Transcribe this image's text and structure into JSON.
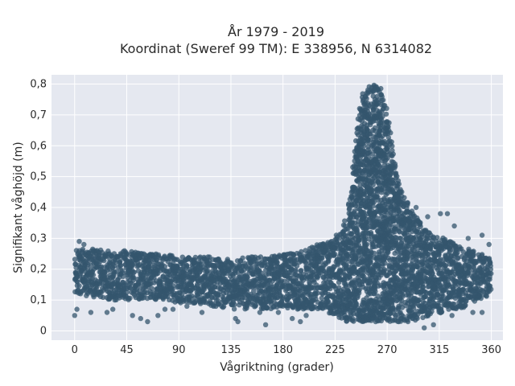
{
  "chart_data": {
    "type": "scatter",
    "title_line1": "År 1979 - 2019",
    "title_line2": "Koordinat (Sweref 99 TM): E 338956, N 6314082",
    "xlabel": "Vågriktning (grader)",
    "ylabel": "Signifikant våghöjd (m)",
    "xlim": [
      -20,
      370
    ],
    "ylim": [
      -0.03,
      0.83
    ],
    "x_ticks": [
      0,
      45,
      90,
      135,
      180,
      225,
      270,
      315,
      360
    ],
    "x_tick_labels": [
      "0",
      "45",
      "90",
      "135",
      "180",
      "225",
      "270",
      "315",
      "360"
    ],
    "y_ticks": [
      0,
      0.1,
      0.2,
      0.3,
      0.4,
      0.5,
      0.6,
      0.7,
      0.8
    ],
    "y_tick_labels": [
      "0",
      "0,1",
      "0,2",
      "0,3",
      "0,4",
      "0,5",
      "0,6",
      "0,7",
      "0,8"
    ],
    "grid": true,
    "marker_color": "#34566d",
    "background_color": "#e5e8f0",
    "density_envelope": {
      "x": [
        0,
        15,
        30,
        45,
        60,
        75,
        90,
        105,
        120,
        135,
        150,
        165,
        180,
        195,
        210,
        220,
        230,
        235,
        240,
        245,
        250,
        255,
        260,
        265,
        270,
        275,
        280,
        285,
        290,
        295,
        300,
        310,
        320,
        330,
        340,
        350,
        360
      ],
      "y_min": [
        0.12,
        0.11,
        0.1,
        0.1,
        0.1,
        0.1,
        0.09,
        0.09,
        0.08,
        0.07,
        0.07,
        0.07,
        0.07,
        0.07,
        0.07,
        0.05,
        0.04,
        0.03,
        0.03,
        0.03,
        0.03,
        0.03,
        0.03,
        0.03,
        0.03,
        0.03,
        0.03,
        0.03,
        0.03,
        0.03,
        0.04,
        0.05,
        0.06,
        0.07,
        0.08,
        0.1,
        0.12
      ],
      "y_max": [
        0.26,
        0.27,
        0.26,
        0.26,
        0.25,
        0.25,
        0.24,
        0.24,
        0.24,
        0.23,
        0.24,
        0.24,
        0.25,
        0.26,
        0.28,
        0.29,
        0.32,
        0.38,
        0.5,
        0.7,
        0.79,
        0.8,
        0.8,
        0.79,
        0.72,
        0.58,
        0.48,
        0.44,
        0.4,
        0.37,
        0.34,
        0.31,
        0.3,
        0.28,
        0.27,
        0.25,
        0.24
      ]
    },
    "outlier_points": [
      {
        "x": 0,
        "y": 0.05
      },
      {
        "x": 2,
        "y": 0.07
      },
      {
        "x": 4,
        "y": 0.29
      },
      {
        "x": 8,
        "y": 0.28
      },
      {
        "x": 14,
        "y": 0.06
      },
      {
        "x": 28,
        "y": 0.06
      },
      {
        "x": 33,
        "y": 0.07
      },
      {
        "x": 50,
        "y": 0.05
      },
      {
        "x": 57,
        "y": 0.04
      },
      {
        "x": 63,
        "y": 0.03
      },
      {
        "x": 72,
        "y": 0.05
      },
      {
        "x": 78,
        "y": 0.07
      },
      {
        "x": 85,
        "y": 0.07
      },
      {
        "x": 97,
        "y": 0.08
      },
      {
        "x": 110,
        "y": 0.06
      },
      {
        "x": 120,
        "y": 0.08
      },
      {
        "x": 127,
        "y": 0.08
      },
      {
        "x": 139,
        "y": 0.04
      },
      {
        "x": 141,
        "y": 0.03
      },
      {
        "x": 160,
        "y": 0.06
      },
      {
        "x": 165,
        "y": 0.02
      },
      {
        "x": 176,
        "y": 0.06
      },
      {
        "x": 188,
        "y": 0.04
      },
      {
        "x": 195,
        "y": 0.03
      },
      {
        "x": 200,
        "y": 0.05
      },
      {
        "x": 209,
        "y": 0.27
      },
      {
        "x": 214,
        "y": 0.28
      },
      {
        "x": 218,
        "y": 0.28
      },
      {
        "x": 226,
        "y": 0.31
      },
      {
        "x": 232,
        "y": 0.32
      },
      {
        "x": 240,
        "y": 0.35
      },
      {
        "x": 295,
        "y": 0.4
      },
      {
        "x": 305,
        "y": 0.37
      },
      {
        "x": 316,
        "y": 0.38
      },
      {
        "x": 322,
        "y": 0.38
      },
      {
        "x": 328,
        "y": 0.34
      },
      {
        "x": 340,
        "y": 0.3
      },
      {
        "x": 352,
        "y": 0.31
      },
      {
        "x": 358,
        "y": 0.28
      },
      {
        "x": 352,
        "y": 0.06
      },
      {
        "x": 344,
        "y": 0.06
      },
      {
        "x": 326,
        "y": 0.05
      },
      {
        "x": 310,
        "y": 0.02
      },
      {
        "x": 302,
        "y": 0.01
      },
      {
        "x": 260,
        "y": 0.03
      },
      {
        "x": 280,
        "y": 0.03
      },
      {
        "x": 332,
        "y": 0.08
      },
      {
        "x": 288,
        "y": 0.03
      }
    ]
  }
}
